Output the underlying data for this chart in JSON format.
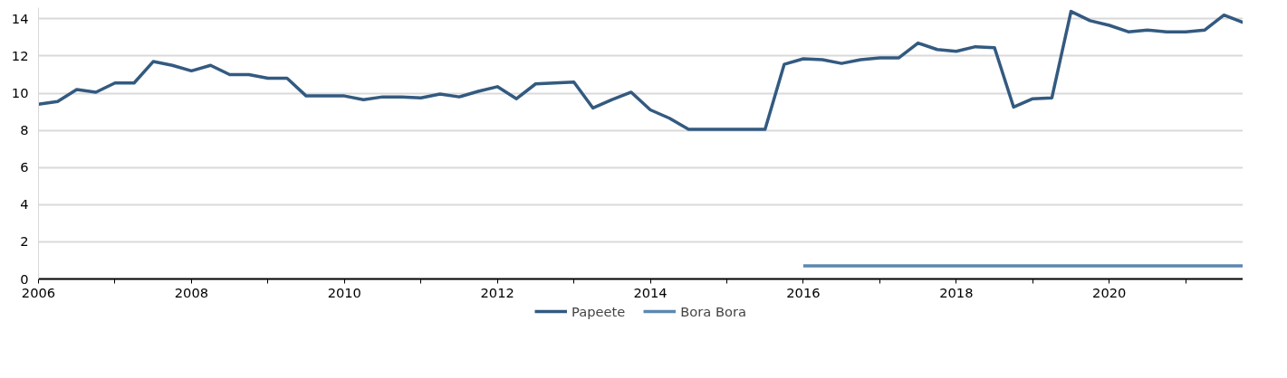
{
  "chart_data": {
    "type": "line",
    "x": [
      "2006-01",
      "2006-04",
      "2006-07",
      "2006-10",
      "2007-01",
      "2007-04",
      "2007-07",
      "2007-10",
      "2008-01",
      "2008-04",
      "2008-07",
      "2008-10",
      "2009-01",
      "2009-04",
      "2009-07",
      "2009-10",
      "2010-01",
      "2010-04",
      "2010-07",
      "2010-10",
      "2011-01",
      "2011-04",
      "2011-07",
      "2011-10",
      "2012-01",
      "2012-04",
      "2012-07",
      "2012-10",
      "2013-01",
      "2013-04",
      "2013-07",
      "2013-10",
      "2014-01",
      "2014-04",
      "2014-07",
      "2014-10",
      "2015-01",
      "2015-04",
      "2015-07",
      "2015-10",
      "2016-01",
      "2016-04",
      "2016-07",
      "2016-10",
      "2017-01",
      "2017-04",
      "2017-07",
      "2017-10",
      "2018-01",
      "2018-04",
      "2018-07",
      "2018-10",
      "2019-01",
      "2019-04",
      "2019-07",
      "2019-10",
      "2020-01",
      "2020-04",
      "2020-07",
      "2020-10",
      "2021-01",
      "2021-04",
      "2021-07",
      "2021-10"
    ],
    "series": [
      {
        "name": "Papeete",
        "color": "#335a80",
        "values": [
          9.4,
          9.55,
          10.2,
          10.05,
          10.55,
          10.55,
          11.7,
          11.5,
          11.2,
          11.5,
          11.0,
          11.0,
          10.8,
          10.8,
          9.85,
          9.85,
          9.85,
          9.65,
          9.8,
          9.8,
          9.75,
          9.95,
          9.8,
          10.1,
          10.35,
          9.7,
          10.5,
          10.55,
          10.6,
          9.2,
          9.65,
          10.05,
          9.1,
          8.65,
          8.05,
          8.05,
          8.05,
          8.05,
          8.05,
          11.55,
          11.85,
          11.8,
          11.6,
          11.8,
          11.9,
          11.9,
          12.7,
          12.35,
          12.25,
          12.5,
          12.45,
          9.25,
          9.7,
          9.75,
          14.4,
          13.9,
          13.65,
          13.3,
          13.4,
          13.3,
          13.3,
          13.4,
          14.2,
          13.8
        ]
      },
      {
        "name": "Bora Bora",
        "color": "#5b88b0",
        "x": [
          "2016-01",
          "2016-04",
          "2016-07",
          "2016-10",
          "2017-01",
          "2017-04",
          "2017-07",
          "2017-10",
          "2018-01",
          "2018-04",
          "2018-07",
          "2018-10",
          "2019-01",
          "2019-04",
          "2019-07",
          "2019-10",
          "2020-01",
          "2020-04",
          "2020-07",
          "2020-10",
          "2021-01",
          "2021-04",
          "2021-07",
          "2021-10"
        ],
        "values": [
          0.7,
          0.7,
          0.7,
          0.7,
          0.7,
          0.7,
          0.7,
          0.7,
          0.7,
          0.7,
          0.7,
          0.7,
          0.7,
          0.7,
          0.7,
          0.7,
          0.7,
          0.7,
          0.7,
          0.7,
          0.7,
          0.7,
          0.7,
          0.7
        ]
      }
    ],
    "xlim": [
      "2006-01",
      "2021-10"
    ],
    "xticks": [
      "2006",
      {
        "value": "2007",
        "label": null
      },
      "2008",
      {
        "value": "2009",
        "label": null
      },
      "2010",
      {
        "value": "2011",
        "label": null
      },
      "2012",
      {
        "value": "2013",
        "label": null
      },
      "2014",
      {
        "value": "2015",
        "label": null
      },
      "2016",
      {
        "value": "2017",
        "label": null
      },
      "2018",
      {
        "value": "2019",
        "label": null
      },
      "2020",
      {
        "value": "2021",
        "label": null
      }
    ],
    "ylim": [
      0,
      14.6
    ],
    "yticks": [
      0,
      2,
      4,
      6,
      8,
      10,
      12,
      14
    ],
    "grid": "y",
    "legend": "bottom",
    "marker": "none",
    "line_style": "solid"
  }
}
